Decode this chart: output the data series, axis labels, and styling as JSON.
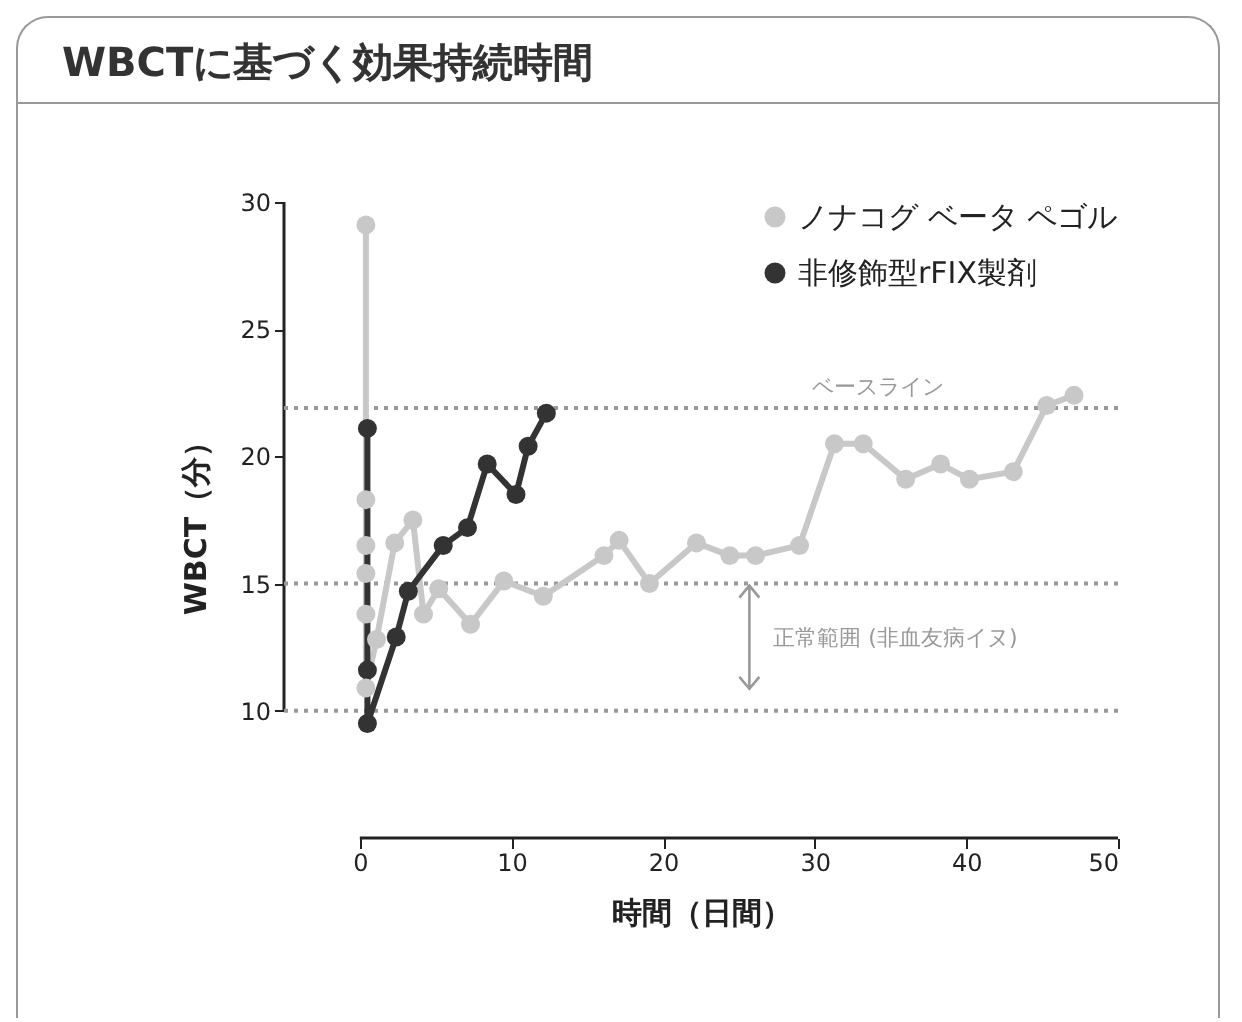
{
  "chart_data": {
    "type": "line",
    "title": "WBCTに基づく効果持続時間",
    "xlabel": "時間（日間）",
    "ylabel": "WBCT（分）",
    "xlim": [
      -5,
      50
    ],
    "xticks": [
      0,
      10,
      20,
      30,
      40,
      50
    ],
    "ylim": [
      5,
      30
    ],
    "yticks": [
      10,
      15,
      20,
      25,
      30
    ],
    "marker": "circle",
    "line_style": "solid",
    "legend": "top right",
    "grid": false,
    "series": [
      {
        "name": "ノナコグ ベータ ペゴル",
        "color": "#c8c8c8",
        "x": [
          0.4,
          0.4,
          0.4,
          0.4,
          0.4,
          0.4,
          1.1,
          2.3,
          3.5,
          4.2,
          5.2,
          7.3,
          9.5,
          12.1,
          16.1,
          17.1,
          19.1,
          22.2,
          24.4,
          26.1,
          29.0,
          31.3,
          33.2,
          36.0,
          38.3,
          40.2,
          43.1,
          45.3,
          47.1
        ],
        "values": [
          29.1,
          18.3,
          16.5,
          15.4,
          13.8,
          10.9,
          12.8,
          16.6,
          17.5,
          13.8,
          14.8,
          13.4,
          15.1,
          14.5,
          16.1,
          16.7,
          15.0,
          16.6,
          16.1,
          16.1,
          16.5,
          20.5,
          20.5,
          19.1,
          19.7,
          19.1,
          19.4,
          22.0,
          22.4
        ]
      },
      {
        "name": "非修飾型rFIX製剤",
        "color": "#333333",
        "x": [
          0.5,
          0.5,
          0.5,
          2.4,
          3.2,
          5.5,
          7.1,
          8.4,
          10.3,
          11.1,
          12.3
        ],
        "values": [
          21.1,
          11.6,
          9.5,
          12.9,
          14.7,
          16.5,
          17.2,
          19.7,
          18.5,
          20.4,
          21.7
        ]
      }
    ],
    "ref_lines": [
      {
        "axis": "y",
        "value": 21.9,
        "label": "ベースライン",
        "color": "#999999",
        "line_style": "dotted"
      },
      {
        "axis": "y",
        "value": 15,
        "label": null,
        "color": "#999999",
        "line_style": "dotted"
      },
      {
        "axis": "y",
        "value": 10,
        "label": null,
        "color": "#999999",
        "line_style": "dotted"
      }
    ],
    "annotations": [
      "正常範囲 (非血友病イヌ)"
    ]
  }
}
